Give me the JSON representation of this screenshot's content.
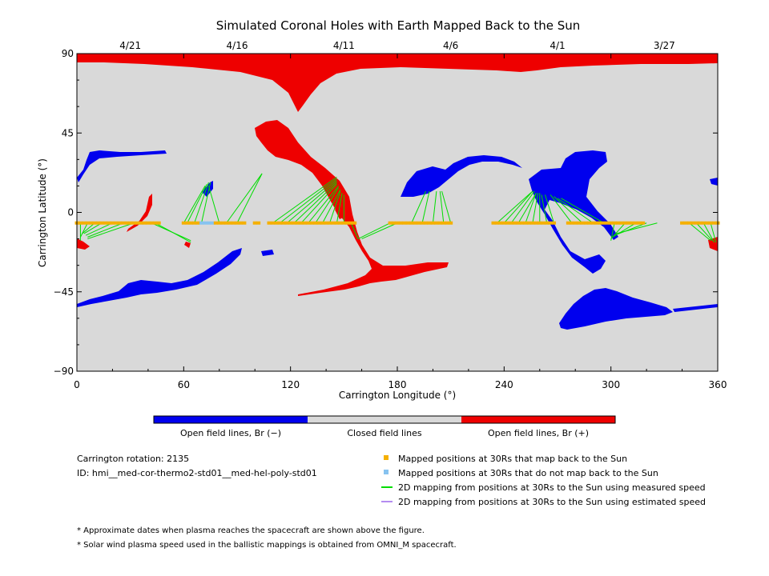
{
  "chart_data": {
    "type": "scatter",
    "title": "Simulated Coronal Holes with Earth Mapped Back to the Sun",
    "xlabel": "Carrington Longitude (°)",
    "ylabel": "Carrington Latitude (°)",
    "xlim": [
      0,
      360
    ],
    "ylim": [
      -90,
      90
    ],
    "x_ticks": [
      "0",
      "60",
      "120",
      "180",
      "240",
      "300",
      "360"
    ],
    "y_ticks": [
      "90",
      "45",
      "0",
      "−45",
      "−90"
    ],
    "top_date_ticks": [
      {
        "label": "4/21",
        "lon": 30
      },
      {
        "label": "4/16",
        "lon": 90
      },
      {
        "label": "4/11",
        "lon": 150
      },
      {
        "label": "4/6",
        "lon": 210
      },
      {
        "label": "4/1",
        "lon": 270
      },
      {
        "label": "3/27",
        "lon": 330
      }
    ],
    "colors": {
      "closed": "#d9d9d9",
      "open_negative": "#0000ee",
      "open_positive": "#ee0000",
      "mapped_yes": "#f5b000",
      "mapped_no": "#87c3f0",
      "line_measured": "#00dd00",
      "line_estimated": "#b48cf0"
    },
    "spacecraft_track": {
      "lat": -6,
      "lon_start": 0,
      "lon_end": 360,
      "step": 2,
      "gaps": [
        [
          46,
          60
        ],
        [
          95,
          100
        ],
        [
          102,
          108
        ],
        [
          156,
          176
        ],
        [
          210,
          234
        ],
        [
          268,
          276
        ],
        [
          318,
          340
        ]
      ],
      "unmapped_lon": [
        70,
        72,
        74,
        76
      ]
    },
    "mapping_lines": [
      {
        "from": [
          2,
          -6
        ],
        "to": [
          2,
          -16
        ]
      },
      {
        "from": [
          6,
          -6
        ],
        "to": [
          2,
          -14
        ]
      },
      {
        "from": [
          10,
          -6
        ],
        "to": [
          3,
          -12
        ]
      },
      {
        "from": [
          14,
          -6
        ],
        "to": [
          4,
          -12
        ]
      },
      {
        "from": [
          20,
          -6
        ],
        "to": [
          5,
          -13
        ]
      },
      {
        "from": [
          26,
          -6
        ],
        "to": [
          6,
          -14
        ]
      },
      {
        "from": [
          32,
          -6
        ],
        "to": [
          6,
          -15
        ]
      },
      {
        "from": [
          42,
          -6
        ],
        "to": [
          64,
          -16
        ]
      },
      {
        "from": [
          44,
          -6
        ],
        "to": [
          64,
          -17
        ]
      },
      {
        "from": [
          60,
          -6
        ],
        "to": [
          72,
          15
        ]
      },
      {
        "from": [
          62,
          -6
        ],
        "to": [
          73,
          16
        ]
      },
      {
        "from": [
          66,
          -6
        ],
        "to": [
          74,
          17
        ]
      },
      {
        "from": [
          70,
          -6
        ],
        "to": [
          75,
          17
        ]
      },
      {
        "from": [
          80,
          -6
        ],
        "to": [
          74,
          15
        ]
      },
      {
        "from": [
          84,
          -6
        ],
        "to": [
          104,
          22
        ]
      },
      {
        "from": [
          90,
          -6
        ],
        "to": [
          104,
          22
        ]
      },
      {
        "from": [
          110,
          -6
        ],
        "to": [
          146,
          20
        ]
      },
      {
        "from": [
          114,
          -6
        ],
        "to": [
          146,
          19
        ]
      },
      {
        "from": [
          118,
          -6
        ],
        "to": [
          146,
          18
        ]
      },
      {
        "from": [
          122,
          -6
        ],
        "to": [
          146,
          17
        ]
      },
      {
        "from": [
          126,
          -6
        ],
        "to": [
          146,
          16
        ]
      },
      {
        "from": [
          130,
          -6
        ],
        "to": [
          147,
          15
        ]
      },
      {
        "from": [
          134,
          -6
        ],
        "to": [
          147,
          14
        ]
      },
      {
        "from": [
          138,
          -6
        ],
        "to": [
          148,
          13
        ]
      },
      {
        "from": [
          142,
          -6
        ],
        "to": [
          148,
          12
        ]
      },
      {
        "from": [
          146,
          -6
        ],
        "to": [
          149,
          11
        ]
      },
      {
        "from": [
          150,
          -6
        ],
        "to": [
          150,
          10
        ]
      },
      {
        "from": [
          154,
          -6
        ],
        "to": [
          158,
          -15
        ]
      },
      {
        "from": [
          176,
          -6
        ],
        "to": [
          158,
          -15
        ]
      },
      {
        "from": [
          180,
          -6
        ],
        "to": [
          160,
          -15
        ]
      },
      {
        "from": [
          188,
          -6
        ],
        "to": [
          196,
          12
        ]
      },
      {
        "from": [
          194,
          -6
        ],
        "to": [
          198,
          12
        ]
      },
      {
        "from": [
          200,
          -6
        ],
        "to": [
          202,
          12
        ]
      },
      {
        "from": [
          206,
          -6
        ],
        "to": [
          204,
          12
        ]
      },
      {
        "from": [
          210,
          -6
        ],
        "to": [
          205,
          12
        ]
      },
      {
        "from": [
          236,
          -6
        ],
        "to": [
          256,
          12
        ]
      },
      {
        "from": [
          240,
          -6
        ],
        "to": [
          256,
          12
        ]
      },
      {
        "from": [
          244,
          -6
        ],
        "to": [
          257,
          12
        ]
      },
      {
        "from": [
          248,
          -6
        ],
        "to": [
          258,
          11
        ]
      },
      {
        "from": [
          252,
          -6
        ],
        "to": [
          258,
          11
        ]
      },
      {
        "from": [
          256,
          -6
        ],
        "to": [
          259,
          11
        ]
      },
      {
        "from": [
          260,
          -6
        ],
        "to": [
          260,
          11
        ]
      },
      {
        "from": [
          264,
          -6
        ],
        "to": [
          261,
          10
        ]
      },
      {
        "from": [
          268,
          -6
        ],
        "to": [
          263,
          10
        ]
      },
      {
        "from": [
          278,
          -6
        ],
        "to": [
          266,
          10
        ]
      },
      {
        "from": [
          284,
          -6
        ],
        "to": [
          268,
          9
        ]
      },
      {
        "from": [
          290,
          -6
        ],
        "to": [
          270,
          8
        ]
      },
      {
        "from": [
          296,
          -6
        ],
        "to": [
          272,
          8
        ]
      },
      {
        "from": [
          302,
          -6
        ],
        "to": [
          300,
          -16
        ]
      },
      {
        "from": [
          308,
          -6
        ],
        "to": [
          300,
          -15
        ]
      },
      {
        "from": [
          314,
          -6
        ],
        "to": [
          301,
          -14
        ]
      },
      {
        "from": [
          320,
          -6
        ],
        "to": [
          302,
          -13
        ]
      },
      {
        "from": [
          326,
          -6
        ],
        "to": [
          303,
          -12
        ]
      },
      {
        "from": [
          344,
          -6
        ],
        "to": [
          356,
          -16
        ]
      },
      {
        "from": [
          348,
          -6
        ],
        "to": [
          357,
          -16
        ]
      },
      {
        "from": [
          352,
          -6
        ],
        "to": [
          358,
          -17
        ]
      },
      {
        "from": [
          356,
          -6
        ],
        "to": [
          359,
          -17
        ]
      }
    ],
    "colorbar": {
      "labels": [
        "Open field lines, Br (−)",
        "Closed field lines",
        "Open field lines, Br (+)"
      ]
    },
    "info": {
      "rotation": "Carrington rotation: 2135",
      "id": "ID: hmi__med-cor-thermo2-std01__med-hel-poly-std01"
    },
    "legend": [
      {
        "label": "Mapped positions at 30Rs that map back to the Sun",
        "kind": "square",
        "color": "#f5b000"
      },
      {
        "label": "Mapped positions at 30Rs that do not map back to the Sun",
        "kind": "square",
        "color": "#87c3f0"
      },
      {
        "label": "2D mapping from positions at 30Rs to the Sun using measured speed",
        "kind": "line",
        "color": "#00dd00"
      },
      {
        "label": "2D mapping from positions at 30Rs to the Sun using estimated speed",
        "kind": "line",
        "color": "#b48cf0"
      }
    ],
    "notes": [
      "* Approximate dates when plasma reaches the spacecraft are shown above the figure.",
      "* Solar wind plasma speed used in the ballistic mappings is obtained from OMNI_M spacecraft."
    ]
  }
}
